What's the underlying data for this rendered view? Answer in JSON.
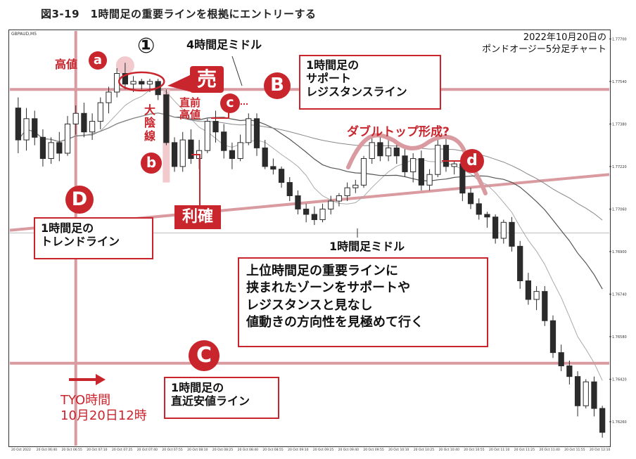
{
  "figure_title": "図3-19　1時間足の重要ラインを根拠にエントリーする",
  "chart_subtitle": "2022年10月20日の\nポンドオージー5分足チャート",
  "chart_symbol": "GBPAUD,M5",
  "annotations": {
    "circled_one": "①",
    "h4_middle": "4時間足ミドル",
    "high_label": "高値",
    "badge_a": "a",
    "sell_tag": "売",
    "big_bear_label": "大\n陰\n線",
    "badge_b": "b",
    "take_profit_tag": "利確",
    "recent_high_label": "直前\n高値",
    "badge_c": "c",
    "badge_B": "B",
    "box_B": "1時間足の\nサポート\nレジスタンスライン",
    "double_top_label": "ダブルトップ形成?",
    "badge_d": "d",
    "badge_D": "D",
    "box_D": "1時間足の\nトレンドライン",
    "h1_middle": "1時間足ミドル",
    "main_note": "上位時間足の重要ラインに\n挟まれたゾーンをサポートや\nレジスタンスと見なし\n値動きの方向性を見極めて行く",
    "badge_C": "C",
    "box_C": "1時間足の\n直近安値ライン",
    "tyo_label": "TYO時間\n10月20日12時"
  },
  "colors": {
    "accent_red": "#c8252d",
    "line_pink": "#d99aa0",
    "candle": "#2b2b2b",
    "ma": "#333333"
  },
  "chart_data": {
    "type": "candlestick",
    "symbol": "GBPAUD",
    "timeframe": "M5",
    "date": "2022-10-20",
    "ylim": [
      1.7617,
      1.7773
    ],
    "y_ticks": [
      1.777,
      1.7754,
      1.7738,
      1.7722,
      1.7706,
      1.769,
      1.7674,
      1.7658,
      1.7642,
      1.7626
    ],
    "x_tick_labels": [
      "20 Oct 2022",
      "20 Oct 06:40",
      "20 Oct 06:55",
      "20 Oct 07:10",
      "20 Oct 07:25",
      "20 Oct 07:40",
      "20 Oct 07:55",
      "20 Oct 08:10",
      "20 Oct 08:25",
      "20 Oct 08:40",
      "20 Oct 08:55",
      "20 Oct 09:10",
      "20 Oct 09:25",
      "20 Oct 09:40",
      "20 Oct 09:55",
      "20 Oct 10:10",
      "20 Oct 10:25",
      "20 Oct 10:40",
      "20 Oct 10:55",
      "20 Oct 11:10",
      "20 Oct 11:25",
      "20 Oct 11:40",
      "20 Oct 11:55",
      "20 Oct 12:10"
    ],
    "candles": [
      {
        "o": 1.7744,
        "h": 1.7748,
        "l": 1.7727,
        "c": 1.7732
      },
      {
        "o": 1.7732,
        "h": 1.7744,
        "l": 1.7728,
        "c": 1.774
      },
      {
        "o": 1.774,
        "h": 1.7743,
        "l": 1.773,
        "c": 1.7733
      },
      {
        "o": 1.7733,
        "h": 1.7736,
        "l": 1.7722,
        "c": 1.7725
      },
      {
        "o": 1.7725,
        "h": 1.7733,
        "l": 1.7723,
        "c": 1.7731
      },
      {
        "o": 1.7731,
        "h": 1.7735,
        "l": 1.7724,
        "c": 1.7727
      },
      {
        "o": 1.7727,
        "h": 1.7741,
        "l": 1.7726,
        "c": 1.7738
      },
      {
        "o": 1.7738,
        "h": 1.7745,
        "l": 1.7734,
        "c": 1.7742
      },
      {
        "o": 1.7742,
        "h": 1.7746,
        "l": 1.7733,
        "c": 1.7735
      },
      {
        "o": 1.7735,
        "h": 1.7742,
        "l": 1.7732,
        "c": 1.7739
      },
      {
        "o": 1.7739,
        "h": 1.7748,
        "l": 1.7736,
        "c": 1.7746
      },
      {
        "o": 1.7746,
        "h": 1.7752,
        "l": 1.7742,
        "c": 1.775
      },
      {
        "o": 1.775,
        "h": 1.7759,
        "l": 1.7748,
        "c": 1.7757
      },
      {
        "o": 1.7757,
        "h": 1.7761,
        "l": 1.7751,
        "c": 1.7753
      },
      {
        "o": 1.7753,
        "h": 1.7756,
        "l": 1.775,
        "c": 1.7754
      },
      {
        "o": 1.7754,
        "h": 1.7755,
        "l": 1.7751,
        "c": 1.7753
      },
      {
        "o": 1.7753,
        "h": 1.7755,
        "l": 1.775,
        "c": 1.7754
      },
      {
        "o": 1.7754,
        "h": 1.7755,
        "l": 1.7747,
        "c": 1.7749
      },
      {
        "o": 1.7749,
        "h": 1.7751,
        "l": 1.773,
        "c": 1.7731
      },
      {
        "o": 1.7731,
        "h": 1.7733,
        "l": 1.772,
        "c": 1.7722
      },
      {
        "o": 1.7722,
        "h": 1.7735,
        "l": 1.772,
        "c": 1.7732
      },
      {
        "o": 1.7732,
        "h": 1.7736,
        "l": 1.7723,
        "c": 1.7725
      },
      {
        "o": 1.7725,
        "h": 1.7732,
        "l": 1.7721,
        "c": 1.7728
      },
      {
        "o": 1.7728,
        "h": 1.774,
        "l": 1.7727,
        "c": 1.7739
      },
      {
        "o": 1.7739,
        "h": 1.7743,
        "l": 1.7731,
        "c": 1.7735
      },
      {
        "o": 1.7735,
        "h": 1.7738,
        "l": 1.7725,
        "c": 1.7728
      },
      {
        "o": 1.7728,
        "h": 1.7731,
        "l": 1.7721,
        "c": 1.7725
      },
      {
        "o": 1.7725,
        "h": 1.7734,
        "l": 1.7724,
        "c": 1.7731
      },
      {
        "o": 1.7731,
        "h": 1.7742,
        "l": 1.773,
        "c": 1.774
      },
      {
        "o": 1.774,
        "h": 1.7742,
        "l": 1.7726,
        "c": 1.7729
      },
      {
        "o": 1.7729,
        "h": 1.7732,
        "l": 1.7721,
        "c": 1.7722
      },
      {
        "o": 1.7722,
        "h": 1.7725,
        "l": 1.7719,
        "c": 1.7721
      },
      {
        "o": 1.7721,
        "h": 1.7722,
        "l": 1.7714,
        "c": 1.7716
      },
      {
        "o": 1.7716,
        "h": 1.7718,
        "l": 1.7709,
        "c": 1.7711
      },
      {
        "o": 1.7711,
        "h": 1.7713,
        "l": 1.7704,
        "c": 1.7706
      },
      {
        "o": 1.7706,
        "h": 1.7708,
        "l": 1.7701,
        "c": 1.7704
      },
      {
        "o": 1.7704,
        "h": 1.7707,
        "l": 1.77,
        "c": 1.7702
      },
      {
        "o": 1.7702,
        "h": 1.7708,
        "l": 1.7701,
        "c": 1.7706
      },
      {
        "o": 1.7706,
        "h": 1.7711,
        "l": 1.7704,
        "c": 1.7709
      },
      {
        "o": 1.7709,
        "h": 1.7712,
        "l": 1.7707,
        "c": 1.7711
      },
      {
        "o": 1.7711,
        "h": 1.7716,
        "l": 1.7709,
        "c": 1.7714
      },
      {
        "o": 1.7714,
        "h": 1.7717,
        "l": 1.7712,
        "c": 1.7715
      },
      {
        "o": 1.7715,
        "h": 1.7726,
        "l": 1.7714,
        "c": 1.7725
      },
      {
        "o": 1.7725,
        "h": 1.7733,
        "l": 1.7723,
        "c": 1.7731
      },
      {
        "o": 1.7731,
        "h": 1.7733,
        "l": 1.7724,
        "c": 1.7726
      },
      {
        "o": 1.7726,
        "h": 1.7732,
        "l": 1.7724,
        "c": 1.7729
      },
      {
        "o": 1.7729,
        "h": 1.7731,
        "l": 1.7723,
        "c": 1.7726
      },
      {
        "o": 1.7726,
        "h": 1.7729,
        "l": 1.7718,
        "c": 1.772
      },
      {
        "o": 1.772,
        "h": 1.7727,
        "l": 1.7716,
        "c": 1.7725
      },
      {
        "o": 1.7725,
        "h": 1.7728,
        "l": 1.7713,
        "c": 1.7715
      },
      {
        "o": 1.7715,
        "h": 1.7721,
        "l": 1.7713,
        "c": 1.7719
      },
      {
        "o": 1.7719,
        "h": 1.7732,
        "l": 1.7718,
        "c": 1.773
      },
      {
        "o": 1.773,
        "h": 1.7733,
        "l": 1.772,
        "c": 1.7722
      },
      {
        "o": 1.7722,
        "h": 1.7724,
        "l": 1.7719,
        "c": 1.7723
      },
      {
        "o": 1.7723,
        "h": 1.7724,
        "l": 1.7709,
        "c": 1.7712
      },
      {
        "o": 1.7712,
        "h": 1.7714,
        "l": 1.7706,
        "c": 1.7708
      },
      {
        "o": 1.7708,
        "h": 1.771,
        "l": 1.7702,
        "c": 1.7704
      },
      {
        "o": 1.7704,
        "h": 1.7705,
        "l": 1.7699,
        "c": 1.7703
      },
      {
        "o": 1.7703,
        "h": 1.7704,
        "l": 1.7693,
        "c": 1.7695
      },
      {
        "o": 1.7695,
        "h": 1.7702,
        "l": 1.7693,
        "c": 1.7701
      },
      {
        "o": 1.7701,
        "h": 1.7703,
        "l": 1.769,
        "c": 1.7692
      },
      {
        "o": 1.7692,
        "h": 1.7694,
        "l": 1.7676,
        "c": 1.7679
      },
      {
        "o": 1.7679,
        "h": 1.7682,
        "l": 1.767,
        "c": 1.7672
      },
      {
        "o": 1.7672,
        "h": 1.7677,
        "l": 1.7668,
        "c": 1.7675
      },
      {
        "o": 1.7675,
        "h": 1.7677,
        "l": 1.7662,
        "c": 1.7664
      },
      {
        "o": 1.7664,
        "h": 1.7666,
        "l": 1.765,
        "c": 1.7652
      },
      {
        "o": 1.7652,
        "h": 1.7655,
        "l": 1.7645,
        "c": 1.7647
      },
      {
        "o": 1.7647,
        "h": 1.7649,
        "l": 1.764,
        "c": 1.7643
      },
      {
        "o": 1.7643,
        "h": 1.7645,
        "l": 1.7628,
        "c": 1.7632
      },
      {
        "o": 1.7632,
        "h": 1.7642,
        "l": 1.7631,
        "c": 1.7641
      },
      {
        "o": 1.7641,
        "h": 1.7643,
        "l": 1.7628,
        "c": 1.7631
      },
      {
        "o": 1.7631,
        "h": 1.7632,
        "l": 1.762,
        "c": 1.7622
      }
    ],
    "levels": {
      "B": 1.7751,
      "C": 1.7648,
      "one_hour_middle": 1.7697
    },
    "trendline_D": {
      "from": 1.7698,
      "to": 1.7719
    },
    "grid": false
  }
}
